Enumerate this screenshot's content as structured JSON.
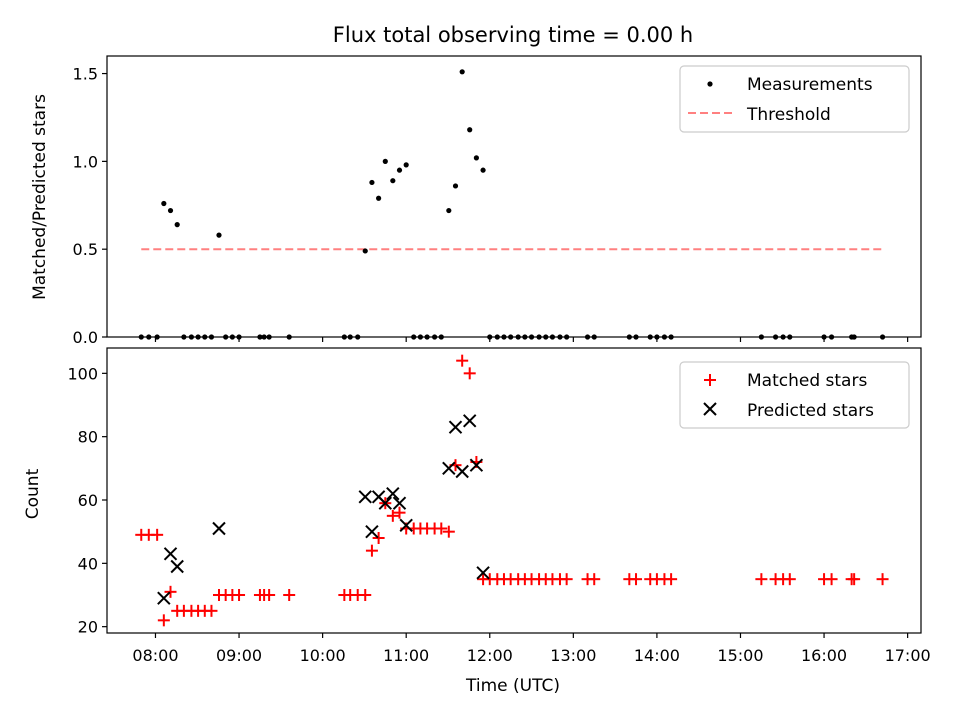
{
  "chart_data": [
    {
      "type": "scatter",
      "title": "Flux total observing time = 0.00 h",
      "xlabel": "",
      "ylabel": "Matched/Predicted stars",
      "xlim": [
        7.42,
        17.16
      ],
      "ylim": [
        0,
        1.6
      ],
      "yticks": [
        0,
        0.5,
        1.0,
        1.5
      ],
      "ytick_labels": [
        "0.0",
        "0.5",
        "1.0",
        "1.5"
      ],
      "threshold": {
        "value": 0.5,
        "x_range": [
          7.83,
          16.7
        ],
        "color": "#ff8080",
        "label": "Threshold"
      },
      "legend": {
        "position": "top-right",
        "entries": [
          "Measurements",
          "Threshold"
        ]
      },
      "series": [
        {
          "name": "Measurements",
          "color": "#000000",
          "points": [
            [
              7.83,
              0
            ],
            [
              7.92,
              0
            ],
            [
              8.02,
              0
            ],
            [
              8.1,
              0.76
            ],
            [
              8.18,
              0.72
            ],
            [
              8.26,
              0.64
            ],
            [
              8.34,
              0
            ],
            [
              8.43,
              0
            ],
            [
              8.51,
              0
            ],
            [
              8.59,
              0
            ],
            [
              8.67,
              0
            ],
            [
              8.76,
              0.58
            ],
            [
              8.84,
              0
            ],
            [
              8.92,
              0
            ],
            [
              9.0,
              0
            ],
            [
              9.25,
              0
            ],
            [
              9.3,
              0
            ],
            [
              9.36,
              0
            ],
            [
              9.6,
              0
            ],
            [
              10.26,
              0
            ],
            [
              10.33,
              0
            ],
            [
              10.42,
              0
            ],
            [
              10.51,
              0.49
            ],
            [
              10.59,
              0.88
            ],
            [
              10.67,
              0.79
            ],
            [
              10.75,
              1.0
            ],
            [
              10.84,
              0.89
            ],
            [
              10.92,
              0.95
            ],
            [
              11.0,
              0.98
            ],
            [
              11.09,
              0
            ],
            [
              11.17,
              0
            ],
            [
              11.25,
              0
            ],
            [
              11.34,
              0
            ],
            [
              11.42,
              0
            ],
            [
              11.51,
              0.72
            ],
            [
              11.59,
              0.86
            ],
            [
              11.67,
              1.51
            ],
            [
              11.76,
              1.18
            ],
            [
              11.84,
              1.02
            ],
            [
              11.92,
              0.95
            ],
            [
              12.0,
              0
            ],
            [
              12.09,
              0
            ],
            [
              12.17,
              0
            ],
            [
              12.25,
              0
            ],
            [
              12.34,
              0
            ],
            [
              12.42,
              0
            ],
            [
              12.5,
              0
            ],
            [
              12.59,
              0
            ],
            [
              12.67,
              0
            ],
            [
              12.75,
              0
            ],
            [
              12.84,
              0
            ],
            [
              12.92,
              0
            ],
            [
              13.17,
              0
            ],
            [
              13.25,
              0
            ],
            [
              13.67,
              0
            ],
            [
              13.75,
              0
            ],
            [
              13.92,
              0
            ],
            [
              14.0,
              0
            ],
            [
              14.09,
              0
            ],
            [
              14.17,
              0
            ],
            [
              15.25,
              0
            ],
            [
              15.42,
              0
            ],
            [
              15.51,
              0
            ],
            [
              15.59,
              0
            ],
            [
              16.0,
              0
            ],
            [
              16.09,
              0
            ],
            [
              16.33,
              0
            ],
            [
              16.36,
              0
            ],
            [
              16.7,
              0
            ]
          ]
        }
      ]
    },
    {
      "type": "scatter",
      "title": "",
      "xlabel": "Time (UTC)",
      "ylabel": "Count",
      "xlim": [
        7.42,
        17.16
      ],
      "ylim": [
        18,
        108
      ],
      "yticks": [
        20,
        40,
        60,
        80,
        100
      ],
      "ytick_labels": [
        "20",
        "40",
        "60",
        "80",
        "100"
      ],
      "xticks": [
        8,
        9,
        10,
        11,
        12,
        13,
        14,
        15,
        16,
        17
      ],
      "xtick_labels": [
        "08:00",
        "09:00",
        "10:00",
        "11:00",
        "12:00",
        "13:00",
        "14:00",
        "15:00",
        "16:00",
        "17:00"
      ],
      "legend": {
        "position": "top-right",
        "entries": [
          "Matched stars",
          "Predicted stars"
        ]
      },
      "series": [
        {
          "name": "Matched stars",
          "marker": "+",
          "color": "#ff0000",
          "points": [
            [
              7.83,
              49
            ],
            [
              7.92,
              49
            ],
            [
              8.02,
              49
            ],
            [
              8.1,
              22
            ],
            [
              8.18,
              31
            ],
            [
              8.26,
              25
            ],
            [
              8.34,
              25
            ],
            [
              8.43,
              25
            ],
            [
              8.51,
              25
            ],
            [
              8.59,
              25
            ],
            [
              8.67,
              25
            ],
            [
              8.76,
              30
            ],
            [
              8.84,
              30
            ],
            [
              8.92,
              30
            ],
            [
              9.0,
              30
            ],
            [
              9.25,
              30
            ],
            [
              9.3,
              30
            ],
            [
              9.36,
              30
            ],
            [
              9.6,
              30
            ],
            [
              10.26,
              30
            ],
            [
              10.33,
              30
            ],
            [
              10.42,
              30
            ],
            [
              10.51,
              30
            ],
            [
              10.59,
              44
            ],
            [
              10.67,
              48
            ],
            [
              10.75,
              59
            ],
            [
              10.84,
              55
            ],
            [
              10.92,
              56
            ],
            [
              11.0,
              51
            ],
            [
              11.09,
              51
            ],
            [
              11.17,
              51
            ],
            [
              11.25,
              51
            ],
            [
              11.34,
              51
            ],
            [
              11.42,
              51
            ],
            [
              11.51,
              50
            ],
            [
              11.59,
              71
            ],
            [
              11.67,
              104
            ],
            [
              11.76,
              100
            ],
            [
              11.84,
              72
            ],
            [
              11.92,
              35
            ],
            [
              12.0,
              35
            ],
            [
              12.09,
              35
            ],
            [
              12.17,
              35
            ],
            [
              12.25,
              35
            ],
            [
              12.34,
              35
            ],
            [
              12.42,
              35
            ],
            [
              12.5,
              35
            ],
            [
              12.59,
              35
            ],
            [
              12.67,
              35
            ],
            [
              12.75,
              35
            ],
            [
              12.84,
              35
            ],
            [
              12.92,
              35
            ],
            [
              13.17,
              35
            ],
            [
              13.25,
              35
            ],
            [
              13.67,
              35
            ],
            [
              13.75,
              35
            ],
            [
              13.92,
              35
            ],
            [
              14.0,
              35
            ],
            [
              14.09,
              35
            ],
            [
              14.17,
              35
            ],
            [
              15.25,
              35
            ],
            [
              15.42,
              35
            ],
            [
              15.51,
              35
            ],
            [
              15.59,
              35
            ],
            [
              16.0,
              35
            ],
            [
              16.09,
              35
            ],
            [
              16.33,
              35
            ],
            [
              16.36,
              35
            ],
            [
              16.7,
              35
            ]
          ]
        },
        {
          "name": "Predicted stars",
          "marker": "x",
          "color": "#000000",
          "points": [
            [
              8.1,
              29
            ],
            [
              8.18,
              43
            ],
            [
              8.26,
              39
            ],
            [
              8.76,
              51
            ],
            [
              10.51,
              61
            ],
            [
              10.59,
              50
            ],
            [
              10.67,
              61
            ],
            [
              10.75,
              59
            ],
            [
              10.84,
              62
            ],
            [
              10.92,
              59
            ],
            [
              11.0,
              52
            ],
            [
              11.51,
              70
            ],
            [
              11.59,
              83
            ],
            [
              11.67,
              69
            ],
            [
              11.76,
              85
            ],
            [
              11.84,
              71
            ],
            [
              11.92,
              37
            ]
          ]
        }
      ]
    }
  ]
}
